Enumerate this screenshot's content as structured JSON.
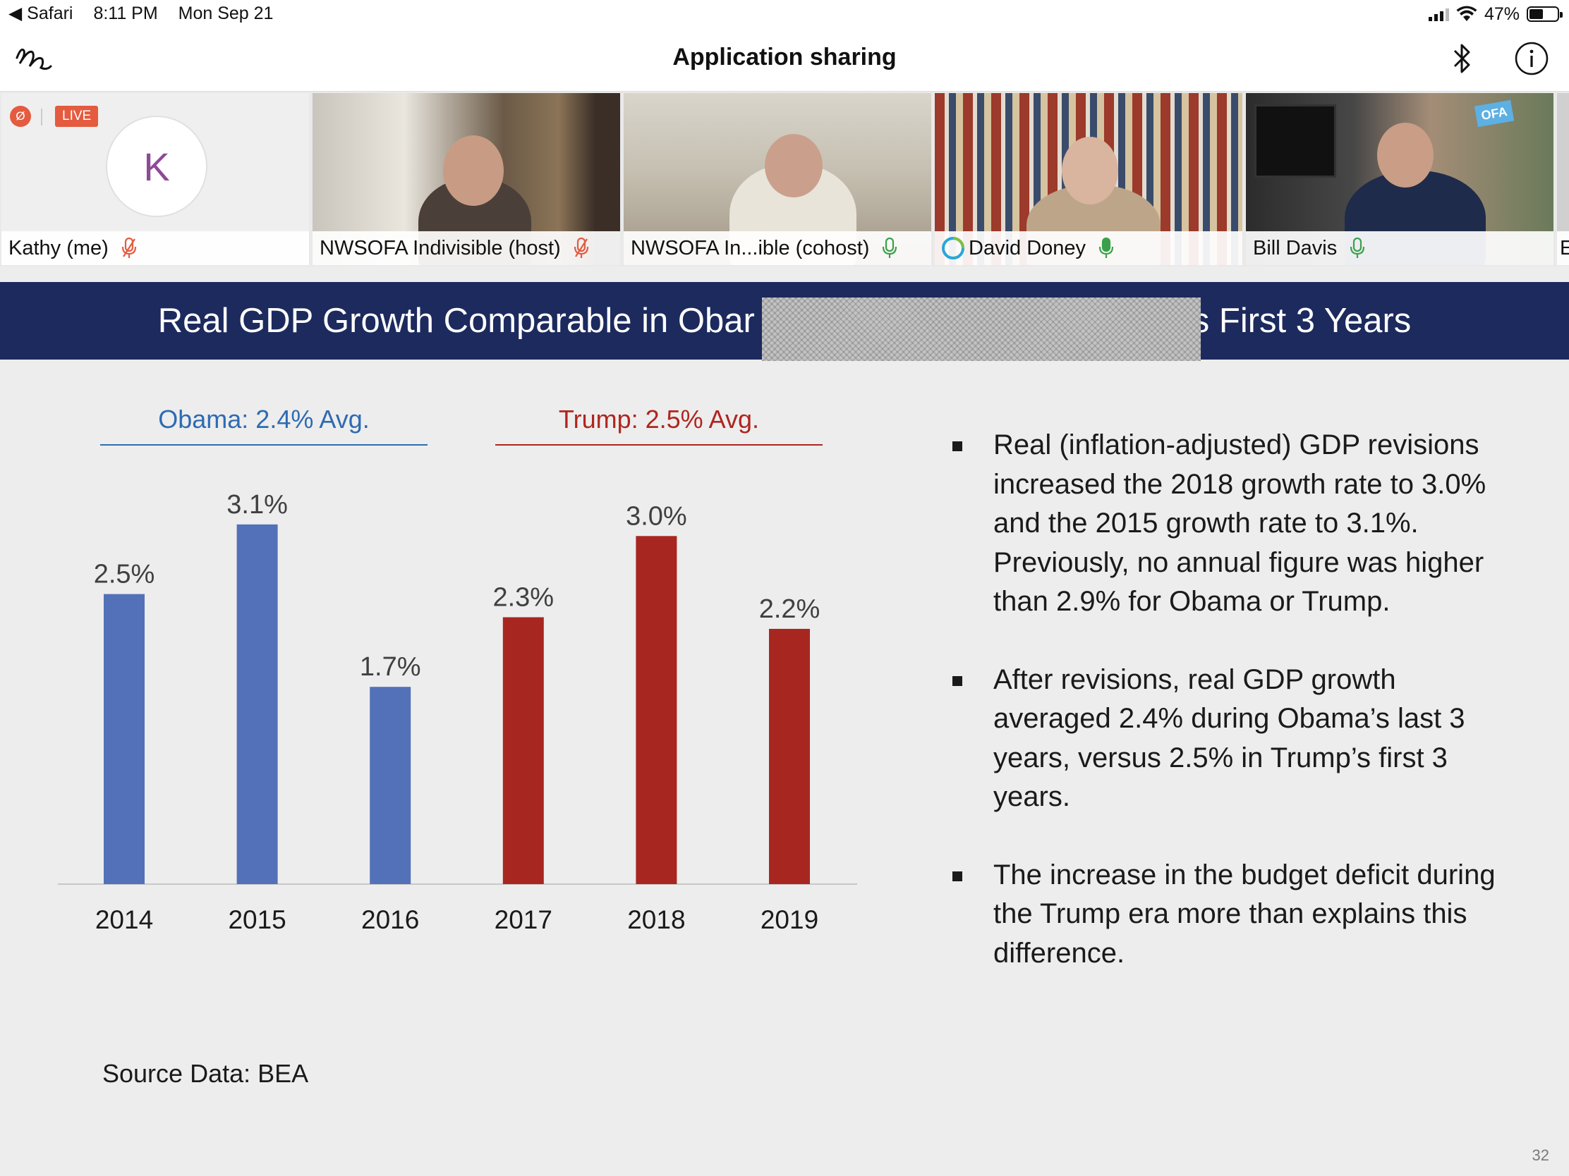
{
  "status_bar": {
    "back_app": "Safari",
    "time": "8:11 PM",
    "date": "Mon Sep 21",
    "battery": "47%"
  },
  "header": {
    "title": "Application sharing",
    "icons": [
      "annotate-icon",
      "bluetooth-icon",
      "info-icon"
    ]
  },
  "participants": [
    {
      "name": "Kathy (me)",
      "avatar_letter": "K",
      "badge": "LIVE",
      "mic": "muted"
    },
    {
      "name": "NWSOFA Indivisible (host)",
      "mic": "muted"
    },
    {
      "name": "NWSOFA In...ible (cohost)",
      "mic": "on"
    },
    {
      "name": "David Doney",
      "mic": "on"
    },
    {
      "name": "Bill Davis",
      "mic": "on"
    },
    {
      "name": "E",
      "mic": ""
    }
  ],
  "slide": {
    "title_left": "Real GDP Growth Comparable in Obar",
    "title_right": "s First 3 Years",
    "group_obama": "Obama:  2.4% Avg.",
    "group_trump": "Trump:  2.5% Avg.",
    "bullets": [
      "Real (inflation-adjusted) GDP revisions increased the 2018 growth rate to 3.0% and the 2015 growth rate to 3.1%.  Previously, no annual figure was higher than 2.9% for Obama or Trump.",
      "After revisions, real GDP growth averaged 2.4% during Obama’s last 3 years, versus 2.5% in Trump’s first 3 years.",
      "The increase in the budget deficit during the Trump era more than explains this difference."
    ],
    "source": "Source Data:  BEA",
    "page_number": "32"
  },
  "chart_data": {
    "type": "bar",
    "categories": [
      "2014",
      "2015",
      "2016",
      "2017",
      "2018",
      "2019"
    ],
    "values": [
      2.5,
      3.1,
      1.7,
      2.3,
      3.0,
      2.2
    ],
    "data_labels": [
      "2.5%",
      "3.1%",
      "1.7%",
      "2.3%",
      "3.0%",
      "2.2%"
    ],
    "bar_colors": [
      "#5371b8",
      "#5371b8",
      "#5371b8",
      "#a82620",
      "#a82620",
      "#a82620"
    ],
    "ylim": [
      0,
      3.5
    ],
    "grid": false,
    "title": "",
    "xlabel": "",
    "ylabel": ""
  },
  "colors": {
    "banner": "#1c2a5e",
    "obama_blue": "#2e6bb2",
    "trump_red": "#b0251f",
    "muted_red": "#e45b3f",
    "mic_green": "#3aa14a"
  }
}
